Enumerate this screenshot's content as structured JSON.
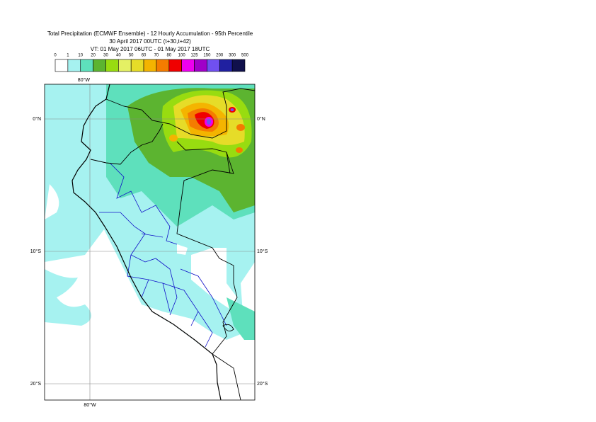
{
  "title": [
    "Total Precipitation (ECMWF Ensemble) - 12 Hourly Accumulation - 95th Percentile",
    "30 April 2017 00UTC (t+30,t+42)",
    "VT: 01 May 2017 06UTC - 01 May 2017 18UTC"
  ],
  "legend": {
    "labels": [
      "0",
      "1",
      "10",
      "20",
      "30",
      "40",
      "50",
      "60",
      "70",
      "80",
      "100",
      "125",
      "150",
      "200",
      "300",
      "500"
    ],
    "colors": [
      "#ffffff",
      "#a6f2f0",
      "#5ee0bc",
      "#5cb430",
      "#98dc10",
      "#e4f064",
      "#e6dc28",
      "#f4b400",
      "#f47c00",
      "#f00000",
      "#ee00ee",
      "#a000c8",
      "#7050f0",
      "#2020a0",
      "#10104c"
    ]
  },
  "map": {
    "lon_labels": [
      "80°W"
    ],
    "lat_labels": [
      "0°N",
      "10°S",
      "20°S"
    ]
  }
}
